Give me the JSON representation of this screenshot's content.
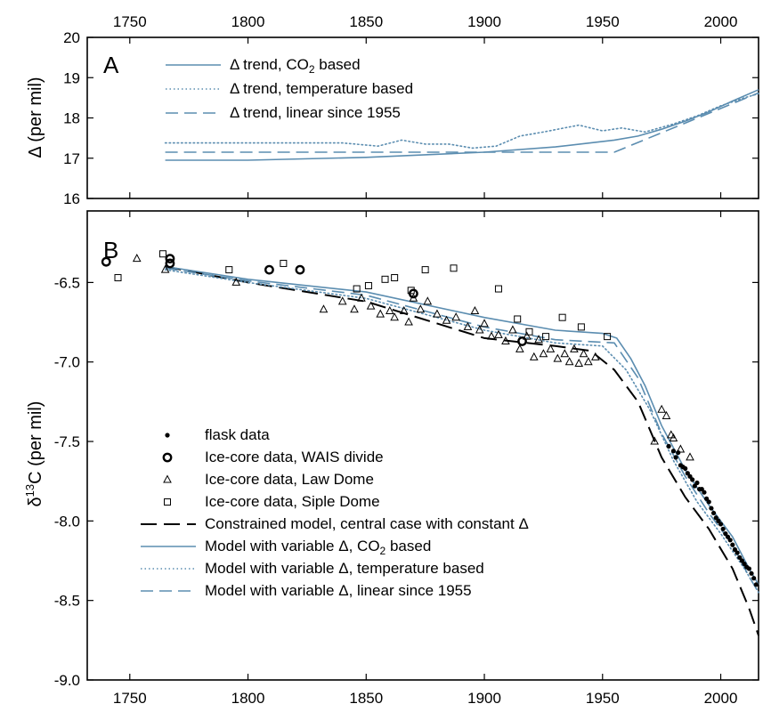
{
  "colors": {
    "model": "#5b8db0",
    "constrained": "#000000",
    "data": "#000000"
  },
  "x_ticks": [
    1750,
    1800,
    1850,
    1900,
    1950,
    2000
  ],
  "chart_data": [
    {
      "panel": "A",
      "type": "line",
      "ylabel": "Δ (per mil)",
      "xlim": [
        1732,
        2016
      ],
      "ylim": [
        16,
        20
      ],
      "y_ticks": [
        "16",
        "17",
        "18",
        "19",
        "20"
      ],
      "series": [
        {
          "name": "Δ trend, CO₂ based",
          "style": "solid",
          "points": [
            [
              1765,
              16.95
            ],
            [
              1800,
              16.95
            ],
            [
              1850,
              17.02
            ],
            [
              1900,
              17.15
            ],
            [
              1930,
              17.28
            ],
            [
              1955,
              17.45
            ],
            [
              1965,
              17.55
            ],
            [
              1975,
              17.72
            ],
            [
              1985,
              17.92
            ],
            [
              1995,
              18.15
            ],
            [
              2005,
              18.42
            ],
            [
              2016,
              18.7
            ]
          ]
        },
        {
          "name": "Δ trend, temperature based",
          "style": "dotted",
          "points": [
            [
              1765,
              17.38
            ],
            [
              1800,
              17.38
            ],
            [
              1840,
              17.38
            ],
            [
              1855,
              17.3
            ],
            [
              1865,
              17.45
            ],
            [
              1875,
              17.35
            ],
            [
              1885,
              17.35
            ],
            [
              1895,
              17.25
            ],
            [
              1905,
              17.3
            ],
            [
              1915,
              17.55
            ],
            [
              1925,
              17.65
            ],
            [
              1940,
              17.82
            ],
            [
              1950,
              17.68
            ],
            [
              1958,
              17.75
            ],
            [
              1968,
              17.65
            ],
            [
              1980,
              17.85
            ],
            [
              1990,
              18.05
            ],
            [
              2000,
              18.3
            ],
            [
              2010,
              18.5
            ],
            [
              2016,
              18.6
            ]
          ]
        },
        {
          "name": "Δ trend, linear since 1955",
          "style": "dashed",
          "points": [
            [
              1765,
              17.15
            ],
            [
              1955,
              17.15
            ],
            [
              2016,
              18.62
            ]
          ]
        }
      ]
    },
    {
      "panel": "B",
      "type": "scatter",
      "ylabel": "δ13C (per mil)",
      "xlim": [
        1732,
        2016
      ],
      "ylim": [
        -9.0,
        -6.05
      ],
      "y_ticks": [
        "-9.0",
        "-8.5",
        "-8.0",
        "-7.5",
        "-7.0",
        "-6.5"
      ],
      "series": [
        {
          "name": "flask data",
          "style": "dot",
          "points": [
            [
              1978,
              -7.53
            ],
            [
              1980,
              -7.56
            ],
            [
              1981,
              -7.6
            ],
            [
              1982,
              -7.57
            ],
            [
              1983,
              -7.65
            ],
            [
              1984,
              -7.66
            ],
            [
              1985,
              -7.67
            ],
            [
              1986,
              -7.7
            ],
            [
              1987,
              -7.72
            ],
            [
              1988,
              -7.74
            ],
            [
              1989,
              -7.78
            ],
            [
              1990,
              -7.76
            ],
            [
              1991,
              -7.8
            ],
            [
              1992,
              -7.8
            ],
            [
              1993,
              -7.82
            ],
            [
              1994,
              -7.86
            ],
            [
              1995,
              -7.88
            ],
            [
              1996,
              -7.92
            ],
            [
              1997,
              -7.95
            ],
            [
              1998,
              -7.98
            ],
            [
              1999,
              -8.0
            ],
            [
              2000,
              -8.02
            ],
            [
              2001,
              -8.05
            ],
            [
              2002,
              -8.08
            ],
            [
              2003,
              -8.1
            ],
            [
              2004,
              -8.12
            ],
            [
              2005,
              -8.15
            ],
            [
              2006,
              -8.18
            ],
            [
              2007,
              -8.2
            ],
            [
              2008,
              -8.23
            ],
            [
              2009,
              -8.25
            ],
            [
              2010,
              -8.27
            ],
            [
              2011,
              -8.29
            ],
            [
              2012,
              -8.3
            ],
            [
              2013,
              -8.33
            ],
            [
              2014,
              -8.36
            ],
            [
              2015,
              -8.4
            ]
          ]
        },
        {
          "name": "Ice-core data, WAIS divide",
          "style": "circle",
          "points": [
            [
              1740,
              -6.37
            ],
            [
              1767,
              -6.35
            ],
            [
              1767,
              -6.38
            ],
            [
              1809,
              -6.42
            ],
            [
              1822,
              -6.42
            ],
            [
              1870,
              -6.57
            ],
            [
              1916,
              -6.87
            ]
          ]
        },
        {
          "name": "Ice-core data, Law Dome",
          "style": "triangle",
          "points": [
            [
              1753,
              -6.35
            ],
            [
              1765,
              -6.42
            ],
            [
              1795,
              -6.5
            ],
            [
              1832,
              -6.67
            ],
            [
              1840,
              -6.62
            ],
            [
              1845,
              -6.67
            ],
            [
              1848,
              -6.6
            ],
            [
              1852,
              -6.65
            ],
            [
              1856,
              -6.7
            ],
            [
              1860,
              -6.68
            ],
            [
              1862,
              -6.72
            ],
            [
              1866,
              -6.68
            ],
            [
              1868,
              -6.75
            ],
            [
              1870,
              -6.6
            ],
            [
              1873,
              -6.67
            ],
            [
              1876,
              -6.62
            ],
            [
              1880,
              -6.7
            ],
            [
              1884,
              -6.74
            ],
            [
              1888,
              -6.72
            ],
            [
              1893,
              -6.78
            ],
            [
              1896,
              -6.68
            ],
            [
              1898,
              -6.8
            ],
            [
              1900,
              -6.76
            ],
            [
              1903,
              -6.84
            ],
            [
              1906,
              -6.83
            ],
            [
              1909,
              -6.87
            ],
            [
              1912,
              -6.8
            ],
            [
              1915,
              -6.92
            ],
            [
              1918,
              -6.84
            ],
            [
              1921,
              -6.97
            ],
            [
              1923,
              -6.86
            ],
            [
              1925,
              -6.95
            ],
            [
              1928,
              -6.92
            ],
            [
              1931,
              -6.98
            ],
            [
              1934,
              -6.95
            ],
            [
              1936,
              -7.0
            ],
            [
              1938,
              -6.92
            ],
            [
              1940,
              -7.01
            ],
            [
              1942,
              -6.95
            ],
            [
              1944,
              -7.0
            ],
            [
              1947,
              -6.97
            ],
            [
              1972,
              -7.5
            ],
            [
              1975,
              -7.3
            ],
            [
              1977,
              -7.34
            ],
            [
              1979,
              -7.46
            ],
            [
              1980,
              -7.48
            ],
            [
              1983,
              -7.55
            ],
            [
              1987,
              -7.6
            ]
          ]
        },
        {
          "name": "Ice-core data, Siple Dome",
          "style": "square",
          "points": [
            [
              1745,
              -6.47
            ],
            [
              1764,
              -6.32
            ],
            [
              1792,
              -6.42
            ],
            [
              1815,
              -6.38
            ],
            [
              1846,
              -6.54
            ],
            [
              1851,
              -6.52
            ],
            [
              1858,
              -6.48
            ],
            [
              1862,
              -6.47
            ],
            [
              1869,
              -6.55
            ],
            [
              1875,
              -6.42
            ],
            [
              1887,
              -6.41
            ],
            [
              1906,
              -6.54
            ],
            [
              1914,
              -6.73
            ],
            [
              1919,
              -6.81
            ],
            [
              1926,
              -6.84
            ],
            [
              1933,
              -6.72
            ],
            [
              1941,
              -6.78
            ],
            [
              1952,
              -6.84
            ]
          ]
        },
        {
          "name": "Constrained model, central case with constant Δ",
          "style": "longdash",
          "points": [
            [
              1765,
              -6.4
            ],
            [
              1800,
              -6.5
            ],
            [
              1850,
              -6.62
            ],
            [
              1900,
              -6.85
            ],
            [
              1930,
              -6.9
            ],
            [
              1945,
              -6.93
            ],
            [
              1955,
              -7.05
            ],
            [
              1965,
              -7.25
            ],
            [
              1975,
              -7.6
            ],
            [
              1985,
              -7.85
            ],
            [
              1995,
              -8.05
            ],
            [
              2005,
              -8.3
            ],
            [
              2012,
              -8.55
            ],
            [
              2016,
              -8.72
            ]
          ]
        },
        {
          "name": "Model with variable Δ, CO₂ based",
          "style": "solid",
          "points": [
            [
              1765,
              -6.4
            ],
            [
              1800,
              -6.48
            ],
            [
              1850,
              -6.56
            ],
            [
              1900,
              -6.72
            ],
            [
              1930,
              -6.8
            ],
            [
              1950,
              -6.82
            ],
            [
              1956,
              -6.85
            ],
            [
              1962,
              -6.98
            ],
            [
              1968,
              -7.15
            ],
            [
              1975,
              -7.4
            ],
            [
              1985,
              -7.68
            ],
            [
              1995,
              -7.9
            ],
            [
              2005,
              -8.1
            ],
            [
              2012,
              -8.3
            ],
            [
              2016,
              -8.4
            ]
          ]
        },
        {
          "name": "Model with variable Δ, temperature based",
          "style": "dotted",
          "points": [
            [
              1765,
              -6.42
            ],
            [
              1800,
              -6.5
            ],
            [
              1850,
              -6.6
            ],
            [
              1900,
              -6.8
            ],
            [
              1930,
              -6.88
            ],
            [
              1950,
              -6.9
            ],
            [
              1960,
              -7.05
            ],
            [
              1970,
              -7.3
            ],
            [
              1980,
              -7.62
            ],
            [
              1990,
              -7.88
            ],
            [
              2000,
              -8.08
            ],
            [
              2010,
              -8.3
            ],
            [
              2016,
              -8.45
            ]
          ]
        },
        {
          "name": "Model with variable Δ, linear since 1955",
          "style": "dashed",
          "points": [
            [
              1765,
              -6.41
            ],
            [
              1800,
              -6.49
            ],
            [
              1850,
              -6.58
            ],
            [
              1900,
              -6.78
            ],
            [
              1930,
              -6.86
            ],
            [
              1955,
              -6.88
            ],
            [
              1965,
              -7.1
            ],
            [
              1975,
              -7.45
            ],
            [
              1985,
              -7.72
            ],
            [
              1995,
              -7.95
            ],
            [
              2005,
              -8.15
            ],
            [
              2012,
              -8.35
            ],
            [
              2016,
              -8.45
            ]
          ]
        }
      ]
    }
  ],
  "legend_a": [
    {
      "text": "Δ trend, CO",
      "sub": "2",
      "tail": " based",
      "style": "solid"
    },
    {
      "text": "Δ trend, temperature based",
      "sub": "",
      "tail": "",
      "style": "dotted"
    },
    {
      "text": "Δ trend, linear since 1955",
      "sub": "",
      "tail": "",
      "style": "dashed"
    }
  ],
  "legend_b": [
    {
      "text": "flask data",
      "sub": "",
      "tail": "",
      "style": "dot"
    },
    {
      "text": "Ice-core data, WAIS divide",
      "sub": "",
      "tail": "",
      "style": "circle"
    },
    {
      "text": "Ice-core data, Law Dome",
      "sub": "",
      "tail": "",
      "style": "triangle"
    },
    {
      "text": "Ice-core data, Siple Dome",
      "sub": "",
      "tail": "",
      "style": "square"
    },
    {
      "text": "Constrained model, central case with constant Δ",
      "sub": "",
      "tail": "",
      "style": "longdash"
    },
    {
      "text": "Model with variable Δ, CO",
      "sub": "2",
      "tail": " based",
      "style": "solid"
    },
    {
      "text": "Model with variable Δ, temperature based",
      "sub": "",
      "tail": "",
      "style": "dotted"
    },
    {
      "text": "Model with variable Δ, linear since 1955",
      "sub": "",
      "tail": "",
      "style": "dashed"
    }
  ],
  "panel_a": {
    "letter": "A",
    "ylabel": "Δ (per mil)"
  },
  "panel_b": {
    "letter": "B",
    "ylabel_main": "δ",
    "ylabel_sup": "13",
    "ylabel_rest": "C (per mil)"
  }
}
